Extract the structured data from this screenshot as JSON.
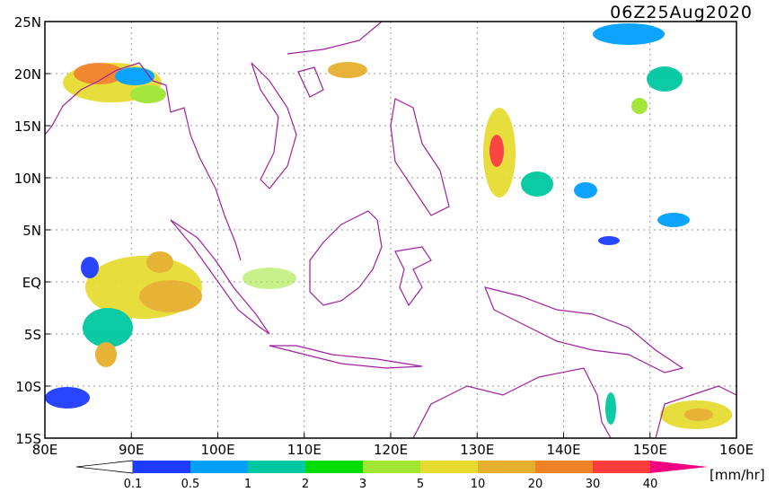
{
  "map": {
    "title": "06Z25Aug2020",
    "lat_ticks": [
      {
        "value": 25,
        "label": "25N"
      },
      {
        "value": 20,
        "label": "20N"
      },
      {
        "value": 15,
        "label": "15N"
      },
      {
        "value": 10,
        "label": "10N"
      },
      {
        "value": 5,
        "label": "5N"
      },
      {
        "value": 0,
        "label": "EQ"
      },
      {
        "value": -5,
        "label": "5S"
      },
      {
        "value": -10,
        "label": "10S"
      },
      {
        "value": -15,
        "label": "15S"
      }
    ],
    "lon_ticks": [
      {
        "value": 80,
        "label": "80E"
      },
      {
        "value": 90,
        "label": "90E"
      },
      {
        "value": 100,
        "label": "100E"
      },
      {
        "value": 110,
        "label": "110E"
      },
      {
        "value": 120,
        "label": "120E"
      },
      {
        "value": 130,
        "label": "130E"
      },
      {
        "value": 140,
        "label": "140E"
      },
      {
        "value": 150,
        "label": "150E"
      },
      {
        "value": 160,
        "label": "160E"
      }
    ],
    "colorbar": {
      "levels": [
        0.1,
        0.5,
        1,
        2,
        3,
        5,
        10,
        20,
        30,
        40
      ],
      "colors": [
        "#ffffff",
        "#1e3cff",
        "#00a0ff",
        "#00c8a0",
        "#00dc00",
        "#a0e632",
        "#e6dc32",
        "#e6af2d",
        "#f08228",
        "#fa3c3c",
        "#f00082"
      ],
      "units": "[mm/hr]"
    }
  }
}
